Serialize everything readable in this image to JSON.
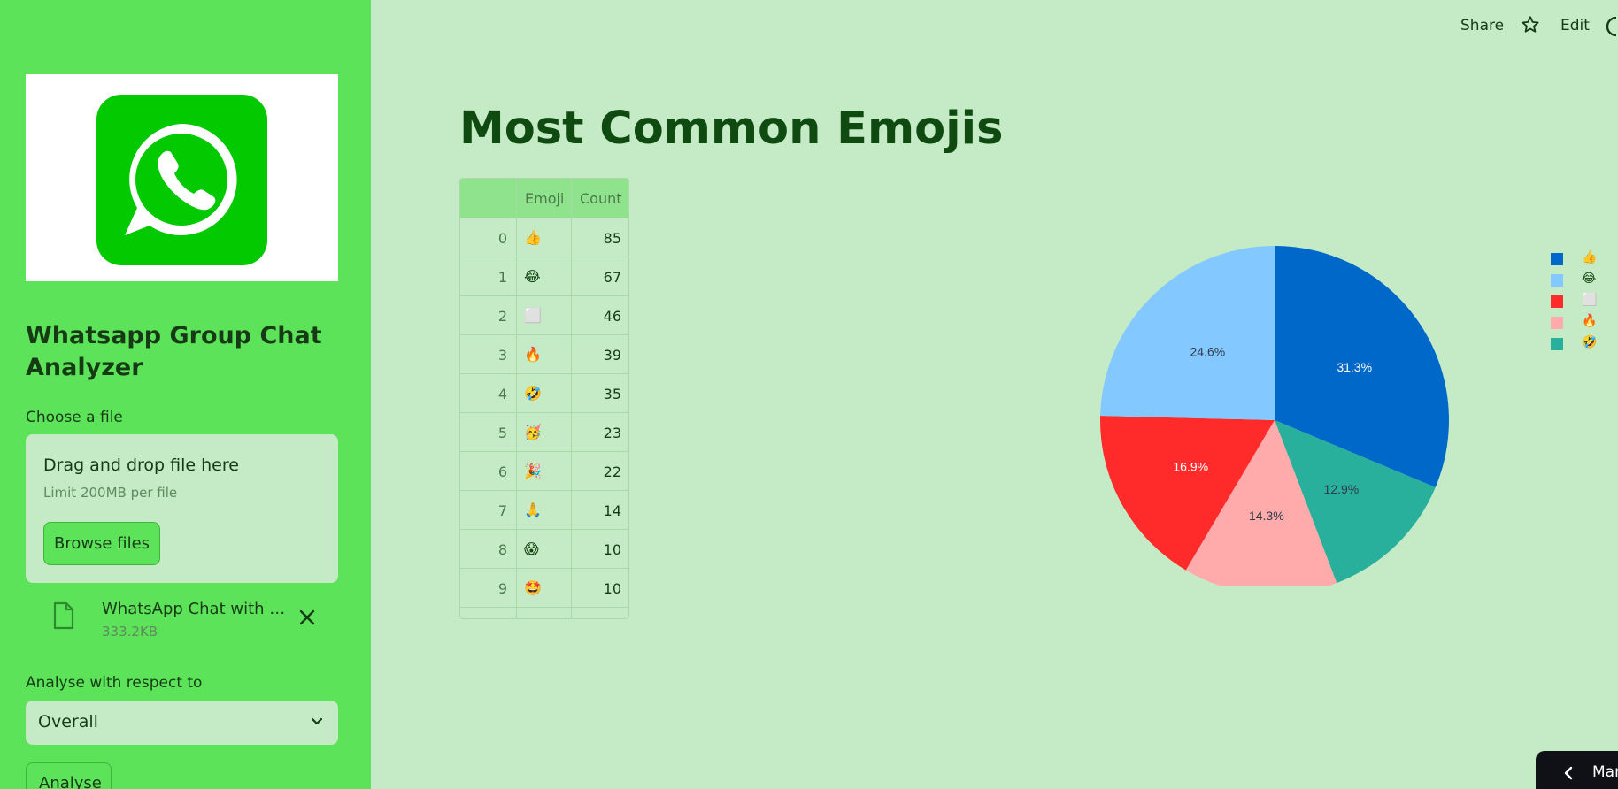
{
  "header": {
    "share_label": "Share",
    "edit_label": "Edit"
  },
  "sidebar": {
    "app_title": "Whatsapp Group Chat Analyzer",
    "file_label": "Choose a file",
    "uploader": {
      "title": "Drag and drop file here",
      "limit": "Limit 200MB per file",
      "browse_label": "Browse files"
    },
    "file": {
      "name": "WhatsApp Chat with Me...",
      "size": "333.2KB"
    },
    "analyse_label": "Analyse with respect to",
    "select_value": "Overall",
    "analyse_button": "Analyse"
  },
  "main": {
    "title": "Most Common Emojis",
    "table": {
      "columns": [
        "",
        "Emoji",
        "Count"
      ],
      "rows": [
        {
          "idx": "0",
          "emoji": "👍",
          "count": "85"
        },
        {
          "idx": "1",
          "emoji": "😂",
          "count": "67"
        },
        {
          "idx": "2",
          "emoji": "⬜",
          "count": "46"
        },
        {
          "idx": "3",
          "emoji": "🔥",
          "count": "39"
        },
        {
          "idx": "4",
          "emoji": "🤣",
          "count": "35"
        },
        {
          "idx": "5",
          "emoji": "🥳",
          "count": "23"
        },
        {
          "idx": "6",
          "emoji": "🎉",
          "count": "22"
        },
        {
          "idx": "7",
          "emoji": "🙏",
          "count": "14"
        },
        {
          "idx": "8",
          "emoji": "😱",
          "count": "10"
        },
        {
          "idx": "9",
          "emoji": "🤩",
          "count": "10"
        }
      ]
    }
  },
  "chart_data": {
    "type": "pie",
    "labels": [
      "👍",
      "😂",
      "⬜",
      "🔥",
      "🤣"
    ],
    "values": [
      31.3,
      24.6,
      16.9,
      14.3,
      12.9
    ],
    "value_labels": [
      "31.3%",
      "24.6%",
      "16.9%",
      "14.3%",
      "12.9%"
    ],
    "colors": [
      "#0068c9",
      "#83c9ff",
      "#ff2b2b",
      "#ffabab",
      "#29b09d"
    ],
    "slice_order": [
      0,
      4,
      3,
      2,
      1
    ],
    "legend": "right"
  },
  "toast": {
    "text": "Mar"
  },
  "colors": {
    "sidebar_bg": "#5ce35a",
    "main_bg": "#c5eac6",
    "accent": "#8fe38d"
  }
}
